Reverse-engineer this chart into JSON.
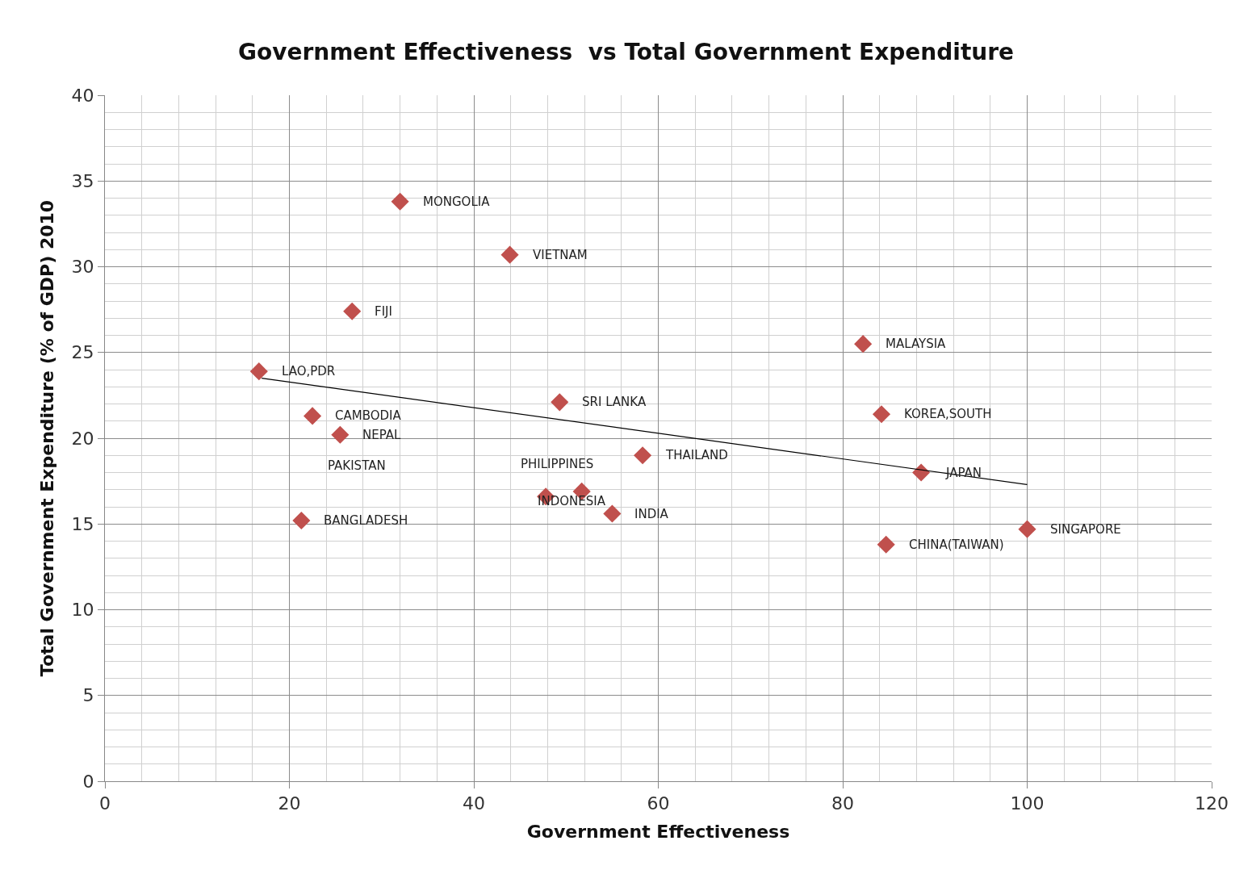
{
  "chart_data": {
    "type": "scatter",
    "title": "Government Effectiveness  vs Total Government Expenditure",
    "xlabel": "Government Effectiveness",
    "ylabel": "Total Government Expenditure (% of GDP) 2010",
    "series": [
      {
        "color": "#c0504d",
        "marker": "diamond",
        "x": [
          32.0,
          43.9,
          26.8,
          16.7,
          22.5,
          25.5,
          21.3,
          49.3,
          58.3,
          47.8,
          51.7,
          55.0,
          82.2,
          84.2,
          88.5,
          100.0,
          84.7
        ],
        "values": [
          33.8,
          30.7,
          27.4,
          23.9,
          21.3,
          20.2,
          15.2,
          22.1,
          19.0,
          16.6,
          16.9,
          15.6,
          25.5,
          21.4,
          18.0,
          14.7,
          13.8
        ]
      },
      {
        "type": "line",
        "color": "#000000",
        "marker": "none",
        "x": [
          17,
          100
        ],
        "values": [
          23.5,
          17.3
        ]
      }
    ],
    "annotations": [
      {
        "text": "MONGOLIA",
        "x": 32.0,
        "y": 33.8
      },
      {
        "text": "VIETNAM",
        "x": 43.9,
        "y": 30.7
      },
      {
        "text": "FIJI",
        "x": 26.8,
        "y": 27.4
      },
      {
        "text": "LAO,PDR",
        "x": 16.7,
        "y": 23.9
      },
      {
        "text": "CAMBODIA",
        "x": 22.5,
        "y": 21.3
      },
      {
        "text": "NEPAL",
        "x": 25.5,
        "y": 20.2
      },
      "PAKISTAN",
      {
        "text": "BANGLADESH",
        "x": 21.3,
        "y": 15.2
      },
      {
        "text": "SRI LANKA",
        "x": 49.3,
        "y": 22.1
      },
      {
        "text": "THAILAND",
        "x": 58.3,
        "y": 19.0
      },
      {
        "text": "PHILIPPINES",
        "x": 51.7,
        "y": 16.9
      },
      {
        "text": "INDONESIA",
        "x": 47.8,
        "y": 16.6
      },
      {
        "text": "INDIA",
        "x": 55.0,
        "y": 15.6
      },
      {
        "text": "MALAYSIA",
        "x": 82.2,
        "y": 25.5
      },
      {
        "text": "KOREA,SOUTH",
        "x": 84.2,
        "y": 21.4
      },
      {
        "text": "JAPAN",
        "x": 88.5,
        "y": 18.0
      },
      {
        "text": "SINGAPORE",
        "x": 100.0,
        "y": 14.7
      },
      {
        "text": "CHINA(TAIWAN)",
        "x": 84.7,
        "y": 13.8
      }
    ],
    "xlim": [
      0,
      120
    ],
    "xticks": [
      0,
      20,
      40,
      60,
      80,
      100,
      120
    ],
    "ylim": [
      0,
      40
    ],
    "yticks": [
      0,
      5,
      10,
      15,
      20,
      25,
      30,
      35,
      40
    ],
    "grid": true,
    "legend": false
  }
}
